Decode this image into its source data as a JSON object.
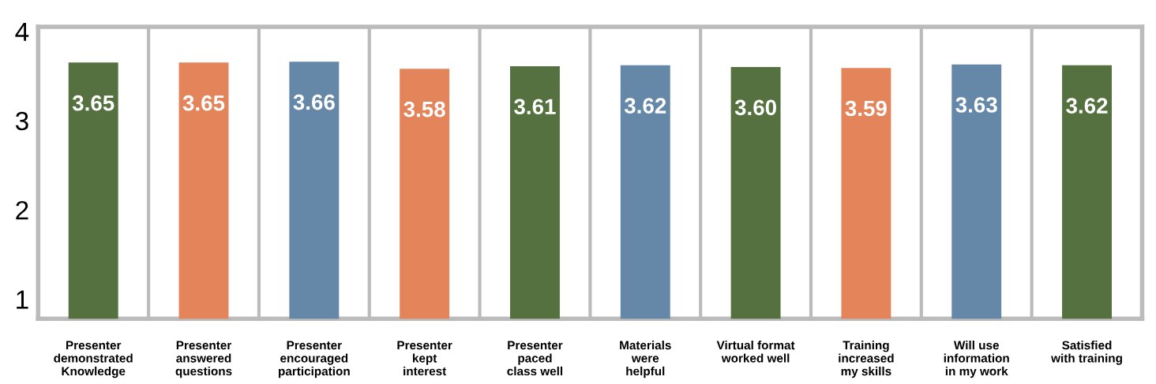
{
  "chart_data": {
    "type": "bar",
    "categories": [
      "Presenter\ndemonstrated\nKnowledge",
      "Presenter\nanswered\nquestions",
      "Presenter\nencouraged\nparticipation",
      "Presenter\nkept\ninterest",
      "Presenter\npaced\nclass well",
      "Materials\nwere\nhelpful",
      "Virtual format\nworked well",
      "Training\nincreased\nmy skills",
      "Will use\ninformation\nin my work",
      "Satisfied\nwith training"
    ],
    "values": [
      3.65,
      3.65,
      3.66,
      3.58,
      3.61,
      3.62,
      3.6,
      3.59,
      3.63,
      3.62
    ],
    "value_labels": [
      "3.65",
      "3.65",
      "3.66",
      "3.58",
      "3.61",
      "3.62",
      "3.60",
      "3.59",
      "3.63",
      "3.62"
    ],
    "colors": [
      "#54713f",
      "#e3845a",
      "#6688a8",
      "#e3845a",
      "#54713f",
      "#6688a8",
      "#54713f",
      "#e3845a",
      "#6688a8",
      "#54713f"
    ],
    "ylim": [
      0.78,
      4.05
    ],
    "yticks": [
      1,
      2,
      3,
      4
    ],
    "grid": "x"
  }
}
